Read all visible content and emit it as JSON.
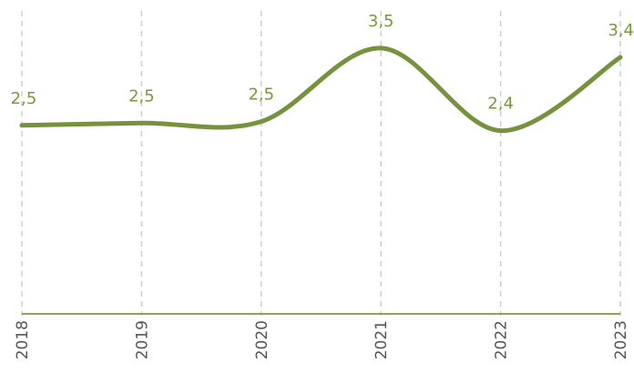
{
  "chart_data": {
    "type": "line",
    "categories": [
      "2018",
      "2019",
      "2020",
      "2021",
      "2022",
      "2023"
    ],
    "series": [
      {
        "name": null,
        "color": "#76923c",
        "values": [
          2.49,
          2.52,
          2.54,
          3.5,
          2.42,
          3.38
        ],
        "value_labels": [
          "2,5",
          "2,5",
          "2,5",
          "3,5",
          "2,4",
          "3,4"
        ]
      }
    ],
    "ylim": [
      0,
      4.13
    ],
    "grid": true
  }
}
